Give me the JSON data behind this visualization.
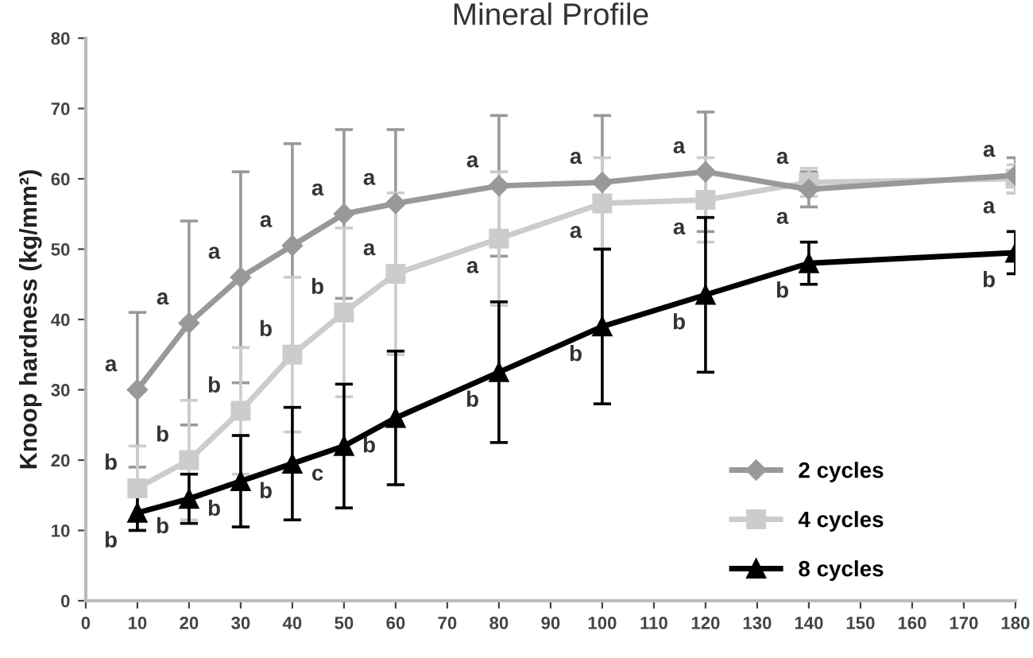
{
  "chart_data": {
    "type": "line",
    "title": "Mineral Profile",
    "ylabel": "Knoop hardness (kg/mm²)",
    "x": [
      10,
      20,
      30,
      40,
      50,
      60,
      80,
      100,
      120,
      140,
      180
    ],
    "xlim": [
      0,
      180
    ],
    "xticks": [
      0,
      10,
      20,
      30,
      40,
      50,
      60,
      70,
      80,
      90,
      100,
      110,
      120,
      130,
      140,
      150,
      160,
      170,
      180
    ],
    "ylim": [
      0,
      80
    ],
    "yticks": [
      0,
      10,
      20,
      30,
      40,
      50,
      60,
      70,
      80
    ],
    "grid": false,
    "legend": "bottom right",
    "series": [
      {
        "name": "2 cycles",
        "color": "#999999",
        "marker": "diamond",
        "values": [
          30,
          39.5,
          46,
          50.5,
          55,
          56.5,
          59,
          59.5,
          61,
          58.5,
          60.5
        ],
        "errors": [
          11,
          14.5,
          15,
          14.5,
          12,
          10.5,
          10,
          9.5,
          8.5,
          2.5,
          2.5
        ]
      },
      {
        "name": "4 cycles",
        "color": "#cccccc",
        "marker": "square",
        "values": [
          16,
          20,
          27,
          35,
          41,
          46.5,
          51.5,
          56.5,
          57,
          59.5,
          60
        ],
        "errors": [
          6,
          8.5,
          9,
          11,
          12,
          11.5,
          9.5,
          6.5,
          6,
          2,
          2
        ]
      },
      {
        "name": "8 cycles",
        "color": "#000000",
        "marker": "triangle",
        "values": [
          12.5,
          14.5,
          17,
          19.5,
          22,
          26,
          32.5,
          39,
          43.5,
          48,
          49.5
        ],
        "errors": [
          2.5,
          3.5,
          6.5,
          8,
          8.8,
          9.5,
          10,
          11,
          11,
          3,
          3
        ]
      }
    ],
    "annotations": [
      {
        "text": "a",
        "x": 10,
        "y": 30
      },
      {
        "text": "a",
        "x": 20,
        "y": 39.5
      },
      {
        "text": "a",
        "x": 30,
        "y": 46
      },
      {
        "text": "a",
        "x": 40,
        "y": 50.5
      },
      {
        "text": "a",
        "x": 50,
        "y": 55
      },
      {
        "text": "a",
        "x": 60,
        "y": 56.5
      },
      {
        "text": "a",
        "x": 80,
        "y": 59
      },
      {
        "text": "a",
        "x": 100,
        "y": 59.5
      },
      {
        "text": "a",
        "x": 120,
        "y": 61
      },
      {
        "text": "a",
        "x": 140,
        "y": 58.5
      },
      {
        "text": "a",
        "x": 180,
        "y": 60.5
      },
      {
        "text": "b",
        "x": 10,
        "y": 16
      },
      {
        "text": "b",
        "x": 20,
        "y": 20
      },
      {
        "text": "b",
        "x": 30,
        "y": 27
      },
      {
        "text": "b",
        "x": 40,
        "y": 35
      },
      {
        "text": "b",
        "x": 50,
        "y": 41
      },
      {
        "text": "a",
        "x": 60,
        "y": 46.5
      },
      {
        "text": "a",
        "x": 80,
        "y": 51.5
      },
      {
        "text": "a",
        "x": 100,
        "y": 56.5
      },
      {
        "text": "a",
        "x": 120,
        "y": 57
      },
      {
        "text": "a",
        "x": 140,
        "y": 59.5
      },
      {
        "text": "a",
        "x": 180,
        "y": 60
      },
      {
        "text": "b",
        "x": 10,
        "y": 12.5
      },
      {
        "text": "b",
        "x": 20,
        "y": 14.5
      },
      {
        "text": "b",
        "x": 30,
        "y": 17
      },
      {
        "text": "b",
        "x": 40,
        "y": 19.5
      },
      {
        "text": "c",
        "x": 50,
        "y": 22
      },
      {
        "text": "b",
        "x": 60,
        "y": 26
      },
      {
        "text": "b",
        "x": 80,
        "y": 32.5
      },
      {
        "text": "b",
        "x": 100,
        "y": 39
      },
      {
        "text": "b",
        "x": 120,
        "y": 43.5
      },
      {
        "text": "b",
        "x": 140,
        "y": 48
      },
      {
        "text": "b",
        "x": 180,
        "y": 49.5
      }
    ]
  }
}
